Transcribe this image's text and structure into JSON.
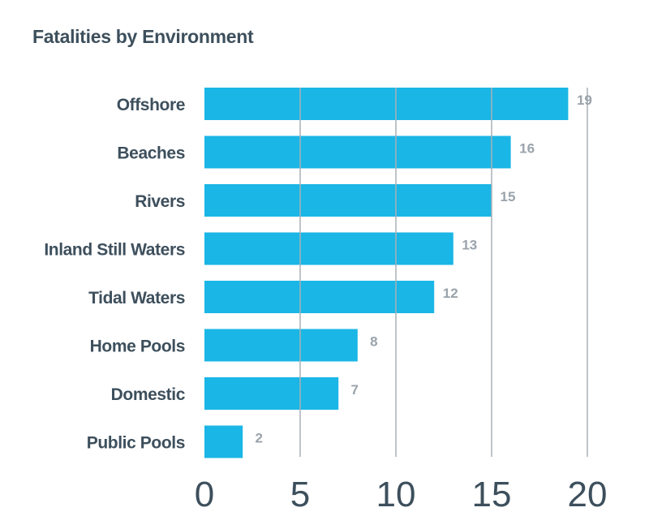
{
  "title": "Fatalities by Environment",
  "colors": {
    "bar": "#1ab6e6",
    "grid": "#a8b0b6",
    "text": "#3d4f5c",
    "value_text": "#9aa3ab"
  },
  "chart_data": {
    "type": "bar",
    "orientation": "horizontal",
    "title": "Fatalities by Environment",
    "xlabel": "",
    "ylabel": "",
    "categories": [
      "Offshore",
      "Beaches",
      "Rivers",
      "Inland Still Waters",
      "Tidal Waters",
      "Home Pools",
      "Domestic",
      "Public Pools"
    ],
    "values": [
      19,
      16,
      15,
      13,
      12,
      8,
      7,
      2
    ],
    "xlim": [
      0,
      20
    ],
    "xticks": [
      "0",
      "5",
      "10",
      "15",
      "20"
    ],
    "grid": true,
    "legend": "none"
  }
}
